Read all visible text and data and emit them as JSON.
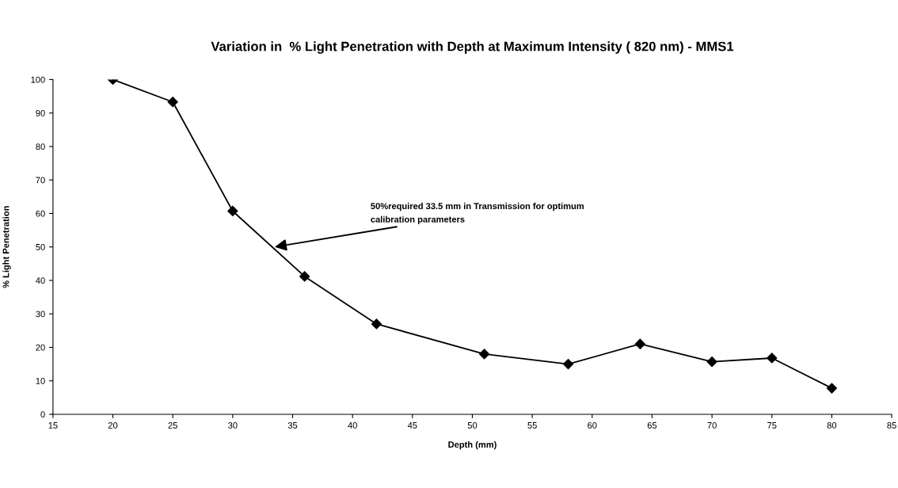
{
  "chart_data": {
    "type": "line",
    "title": "Variation in  % Light Penetration with Depth at Maximum Intensity ( 820 nm) - MMS1",
    "xlabel": "Depth (mm)",
    "ylabel": "% Light Penetration",
    "x": [
      20,
      25,
      30,
      36,
      42,
      51,
      58,
      64,
      70,
      75,
      80
    ],
    "series": [
      {
        "color": "#000000",
        "values": [
          100,
          93.3,
          60.7,
          41.2,
          27,
          18,
          15,
          21,
          15.7,
          16.8,
          7.8
        ]
      }
    ],
    "xlim": [
      15,
      85
    ],
    "xticks": [
      15,
      20,
      25,
      30,
      35,
      40,
      45,
      50,
      55,
      60,
      65,
      70,
      75,
      80,
      85
    ],
    "ylim": [
      0,
      100
    ],
    "yticks": [
      0,
      10,
      20,
      30,
      40,
      50,
      60,
      70,
      80,
      90,
      100
    ],
    "marker": "diamond",
    "line_style": "solid",
    "grid": false,
    "legend": false,
    "annotations": [
      {
        "text": "50%required 33.5 mm in Transmission for optimum calibration parameters",
        "x": 33.5,
        "y": 50
      }
    ]
  }
}
